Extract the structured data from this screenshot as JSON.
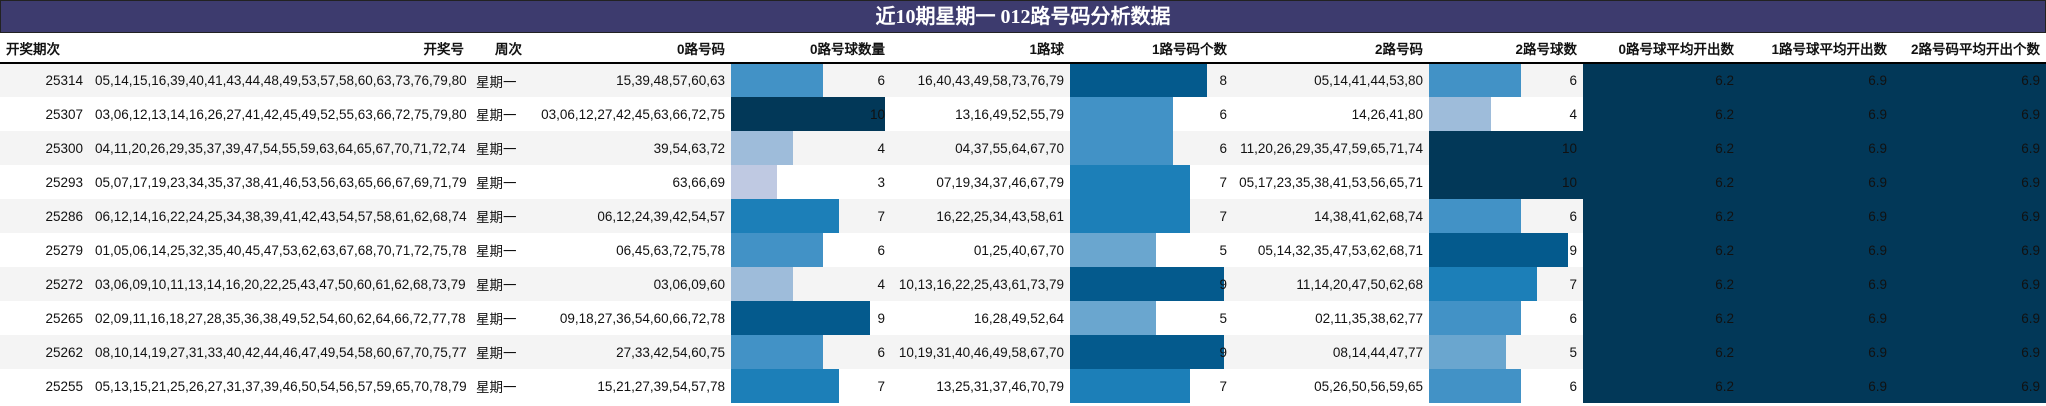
{
  "title": "近10期星期一 012路号码分析数据",
  "headers": [
    "开奖期次",
    "开奖号",
    "周次",
    "0路号码",
    "0路号球数量",
    "1路球",
    "1路号码个数",
    "2路号码",
    "2路号球数",
    "0路号球平均开出数",
    "1路号球平均开出数",
    "2路号码平均开出个数"
  ],
  "colors": {
    "title_bg": "#3d3b6e",
    "avg_bg": "#023858",
    "scale": {
      "3": "#bfc9e2",
      "4": "#9ebcda",
      "5": "#6aa6cf",
      "6": "#4292c6",
      "7": "#1c7fb8",
      "8": "#045a8d",
      "9": "#045a8d",
      "10": "#023858"
    }
  },
  "rows": [
    {
      "issue": "25314",
      "numbers": "05,14,15,16,39,40,41,43,44,48,49,53,57,58,60,63,73,76,79,80",
      "weekday": "星期一",
      "r0": "15,39,48,57,60,63",
      "r0n": 6,
      "r1": "16,40,43,49,58,73,76,79",
      "r1n": 8,
      "r2": "05,14,41,44,53,80",
      "r2n": 6,
      "a0": "6.2",
      "a1": "6.9",
      "a2": "6.9"
    },
    {
      "issue": "25307",
      "numbers": "03,06,12,13,14,16,26,27,41,42,45,49,52,55,63,66,72,75,79,80",
      "weekday": "星期一",
      "r0": "03,06,12,27,42,45,63,66,72,75",
      "r0n": 10,
      "r1": "13,16,49,52,55,79",
      "r1n": 6,
      "r2": "14,26,41,80",
      "r2n": 4,
      "a0": "6.2",
      "a1": "6.9",
      "a2": "6.9"
    },
    {
      "issue": "25300",
      "numbers": "04,11,20,26,29,35,37,39,47,54,55,59,63,64,65,67,70,71,72,74",
      "weekday": "星期一",
      "r0": "39,54,63,72",
      "r0n": 4,
      "r1": "04,37,55,64,67,70",
      "r1n": 6,
      "r2": "11,20,26,29,35,47,59,65,71,74",
      "r2n": 10,
      "a0": "6.2",
      "a1": "6.9",
      "a2": "6.9"
    },
    {
      "issue": "25293",
      "numbers": "05,07,17,19,23,34,35,37,38,41,46,53,56,63,65,66,67,69,71,79",
      "weekday": "星期一",
      "r0": "63,66,69",
      "r0n": 3,
      "r1": "07,19,34,37,46,67,79",
      "r1n": 7,
      "r2": "05,17,23,35,38,41,53,56,65,71",
      "r2n": 10,
      "a0": "6.2",
      "a1": "6.9",
      "a2": "6.9"
    },
    {
      "issue": "25286",
      "numbers": "06,12,14,16,22,24,25,34,38,39,41,42,43,54,57,58,61,62,68,74",
      "weekday": "星期一",
      "r0": "06,12,24,39,42,54,57",
      "r0n": 7,
      "r1": "16,22,25,34,43,58,61",
      "r1n": 7,
      "r2": "14,38,41,62,68,74",
      "r2n": 6,
      "a0": "6.2",
      "a1": "6.9",
      "a2": "6.9"
    },
    {
      "issue": "25279",
      "numbers": "01,05,06,14,25,32,35,40,45,47,53,62,63,67,68,70,71,72,75,78",
      "weekday": "星期一",
      "r0": "06,45,63,72,75,78",
      "r0n": 6,
      "r1": "01,25,40,67,70",
      "r1n": 5,
      "r2": "05,14,32,35,47,53,62,68,71",
      "r2n": 9,
      "a0": "6.2",
      "a1": "6.9",
      "a2": "6.9"
    },
    {
      "issue": "25272",
      "numbers": "03,06,09,10,11,13,14,16,20,22,25,43,47,50,60,61,62,68,73,79",
      "weekday": "星期一",
      "r0": "03,06,09,60",
      "r0n": 4,
      "r1": "10,13,16,22,25,43,61,73,79",
      "r1n": 9,
      "r2": "11,14,20,47,50,62,68",
      "r2n": 7,
      "a0": "6.2",
      "a1": "6.9",
      "a2": "6.9"
    },
    {
      "issue": "25265",
      "numbers": "02,09,11,16,18,27,28,35,36,38,49,52,54,60,62,64,66,72,77,78",
      "weekday": "星期一",
      "r0": "09,18,27,36,54,60,66,72,78",
      "r0n": 9,
      "r1": "16,28,49,52,64",
      "r1n": 5,
      "r2": "02,11,35,38,62,77",
      "r2n": 6,
      "a0": "6.2",
      "a1": "6.9",
      "a2": "6.9"
    },
    {
      "issue": "25262",
      "numbers": "08,10,14,19,27,31,33,40,42,44,46,47,49,54,58,60,67,70,75,77",
      "weekday": "星期一",
      "r0": "27,33,42,54,60,75",
      "r0n": 6,
      "r1": "10,19,31,40,46,49,58,67,70",
      "r1n": 9,
      "r2": "08,14,44,47,77",
      "r2n": 5,
      "a0": "6.2",
      "a1": "6.9",
      "a2": "6.9"
    },
    {
      "issue": "25255",
      "numbers": "05,13,15,21,25,26,27,31,37,39,46,50,54,56,57,59,65,70,78,79",
      "weekday": "星期一",
      "r0": "15,21,27,39,54,57,78",
      "r0n": 7,
      "r1": "13,25,31,37,46,70,79",
      "r1n": 7,
      "r2": "05,26,50,56,59,65",
      "r2n": 6,
      "a0": "6.2",
      "a1": "6.9",
      "a2": "6.9"
    }
  ]
}
